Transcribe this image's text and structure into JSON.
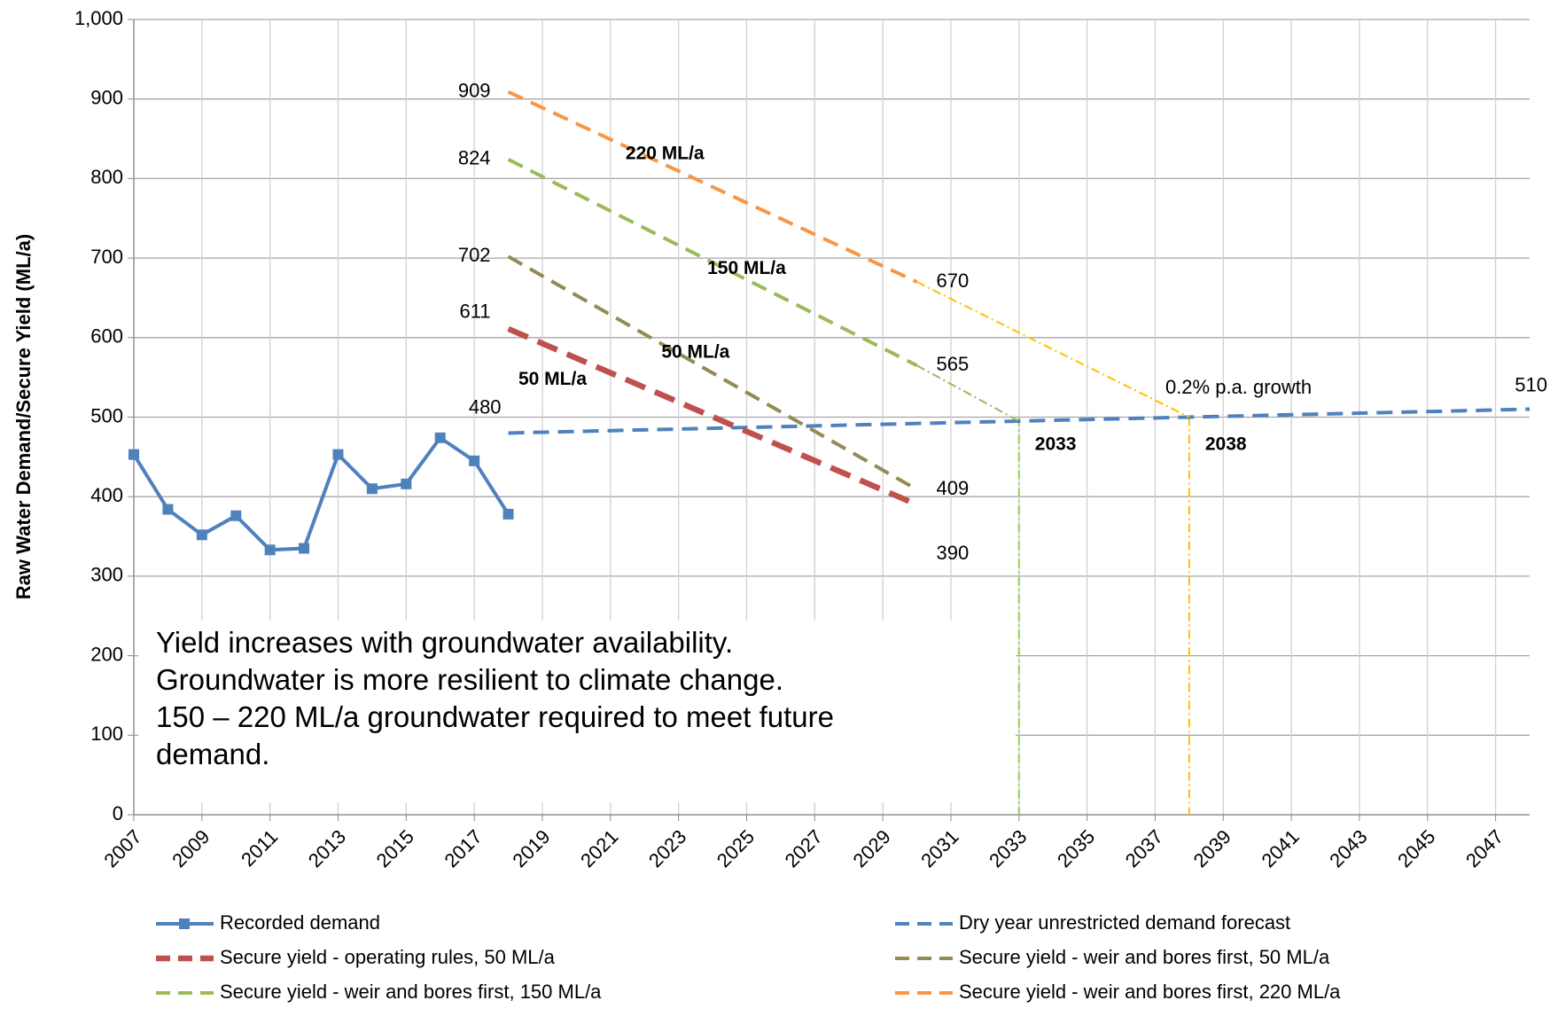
{
  "chart_data": {
    "type": "line",
    "y_label": "Raw Water Demand/Secure Yield (ML/a)",
    "xlim": [
      2007,
      2048
    ],
    "xticks": [
      2007,
      2009,
      2011,
      2013,
      2015,
      2017,
      2019,
      2021,
      2023,
      2025,
      2027,
      2029,
      2031,
      2033,
      2035,
      2037,
      2039,
      2041,
      2043,
      2045,
      2047
    ],
    "ylim": [
      0,
      1000
    ],
    "yticks": [
      0,
      100,
      200,
      300,
      400,
      500,
      600,
      700,
      800,
      900,
      {
        "value": 1000,
        "label": "1,000"
      }
    ],
    "grid": true,
    "legend": "bottom",
    "series": [
      {
        "name": "Recorded demand",
        "color": "#4f81bd",
        "style": "solid-markers",
        "x": [
          2007,
          2008,
          2009,
          2010,
          2011,
          2012,
          2013,
          2014,
          2015,
          2016,
          2017,
          2018
        ],
        "values": [
          453,
          384,
          352,
          376,
          333,
          335,
          453,
          410,
          416,
          474,
          445,
          378
        ]
      },
      {
        "name": "Dry year unrestricted demand forecast",
        "color": "#4f81bd",
        "style": "dashed",
        "x": [
          2018,
          2033,
          2038,
          2048
        ],
        "values": [
          480,
          495,
          500,
          510
        ],
        "rate_label": "0.2% p.a. growth"
      },
      {
        "name": "Secure yield - operating rules, 50 ML/a",
        "color": "#c0504d",
        "style": "dashed-thick",
        "x": [
          2018,
          2030
        ],
        "values": [
          611,
          390
        ],
        "rate_label": "50 ML/a"
      },
      {
        "name": "Secure yield - weir and bores first, 50 ML/a",
        "color": "#948a54",
        "style": "dashed",
        "x": [
          2018,
          2030
        ],
        "values": [
          702,
          409
        ],
        "rate_label": "50 ML/a"
      },
      {
        "name": "Secure yield - weir and bores first, 150 ML/a",
        "color": "#9bbb59",
        "style": "dashed",
        "x": [
          2018,
          2030
        ],
        "values": [
          824,
          565
        ],
        "rate_label": "150 ML/a",
        "extension_x": [
          2030,
          2033
        ],
        "extension_values": [
          565,
          495
        ]
      },
      {
        "name": "Secure yield - weir and bores first, 220 ML/a",
        "color": "#f79646",
        "style": "dashed",
        "x": [
          2018,
          2030
        ],
        "values": [
          909,
          670
        ],
        "rate_label": "220 ML/a",
        "extension_x": [
          2030,
          2038
        ],
        "extension_values": [
          670,
          500
        ],
        "extension_color": "#ffc000"
      }
    ],
    "markers": [
      {
        "x": 2033,
        "label": "2033",
        "color": "#92d050"
      },
      {
        "x": 2038,
        "label": "2038",
        "color": "#ffc000"
      }
    ],
    "text_box": [
      "Yield increases with groundwater availability.",
      "Groundwater is more resilient to climate change.",
      "150 – 220 ML/a groundwater required to meet future",
      "demand."
    ]
  }
}
